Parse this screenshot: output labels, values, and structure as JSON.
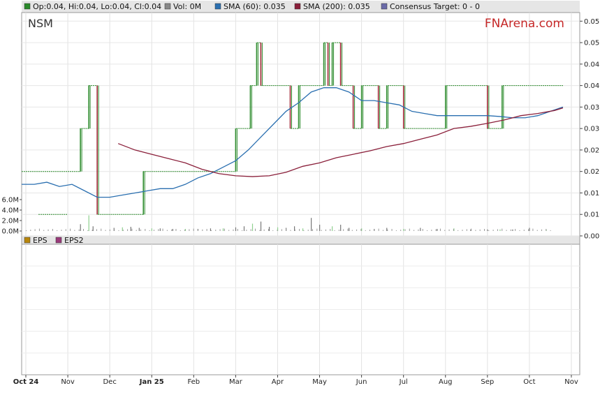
{
  "chart_data": [
    {
      "type": "line",
      "panel": "price",
      "ticker": "NSM",
      "brand": "FNArena.com",
      "legend": [
        {
          "label": "Op:0.04, Hi:0.04, Lo:0.04, Cl:0.04",
          "color": "#2a8a2a"
        },
        {
          "label": "Vol: 0M",
          "color": "#888888"
        },
        {
          "label": "SMA (60): 0.035",
          "color": "#2a6fb0"
        },
        {
          "label": "SMA (200): 0.035",
          "color": "#8a1f3a"
        },
        {
          "label": "Consensus Target: 0 - 0",
          "color": "#6a6aa8"
        }
      ],
      "x_tick_labels": [
        "Oct 24",
        "Nov",
        "Dec",
        "Jan 25",
        "Feb",
        "Mar",
        "Apr",
        "May",
        "Jun",
        "Jul",
        "Aug",
        "Sep",
        "Oct",
        "Nov"
      ],
      "y_tick_labels": [
        "0.055",
        "0.050",
        "0.045",
        "0.040",
        "0.035",
        "0.030",
        "0.025",
        "0.020",
        "0.015",
        "0.010",
        "0.005"
      ],
      "ylim": [
        0.005,
        0.057
      ],
      "volume_tick_labels": [
        "6.0M",
        "4.0M",
        "2.0M",
        "0.0M"
      ],
      "volume_ylim": [
        0,
        8
      ],
      "x_domain": [
        -0.1,
        13.2
      ],
      "close_series": {
        "name": "Close",
        "color": "#2a8a2a",
        "x": [
          -0.1,
          0.2,
          0.6,
          0.7,
          1.0,
          1.1,
          1.15,
          1.2,
          1.3,
          1.5,
          1.7,
          2.0,
          2.3,
          2.8,
          3.2,
          3.6,
          4.2,
          4.6,
          5.0,
          5.2,
          5.35,
          5.5,
          5.6,
          5.65,
          5.75,
          5.9,
          6.1,
          6.3,
          6.5,
          6.8,
          7.0,
          7.1,
          7.2,
          7.3,
          7.5,
          7.7,
          7.8,
          8.0,
          8.2,
          8.4,
          8.6,
          9.0,
          9.3,
          9.6,
          10.0,
          10.4,
          11.0,
          11.3,
          11.35,
          11.4,
          11.6,
          12.0,
          12.6
        ],
        "y": [
          0.02,
          0.02,
          0.02,
          0.02,
          0.02,
          0.02,
          0.02,
          0.02,
          0.03,
          0.04,
          0.01,
          0.01,
          0.01,
          0.02,
          0.02,
          0.02,
          0.02,
          0.02,
          0.03,
          0.03,
          0.04,
          0.05,
          0.04,
          0.04,
          0.04,
          0.04,
          0.04,
          0.03,
          0.04,
          0.04,
          0.04,
          0.05,
          0.04,
          0.05,
          0.04,
          0.04,
          0.03,
          0.04,
          0.04,
          0.03,
          0.04,
          0.03,
          0.03,
          0.03,
          0.04,
          0.04,
          0.03,
          0.03,
          0.04,
          0.04,
          0.04,
          0.04,
          0.04
        ],
        "dot_segment_low": {
          "x": [
            0.3,
            1.0
          ],
          "y": 0.01
        }
      },
      "series": [
        {
          "name": "SMA (60)",
          "color": "#2a6fb0",
          "x": [
            -0.1,
            0.2,
            0.5,
            0.8,
            1.1,
            1.4,
            1.7,
            2.0,
            2.3,
            2.6,
            2.9,
            3.2,
            3.5,
            3.8,
            4.1,
            4.4,
            4.7,
            5.0,
            5.3,
            5.6,
            5.9,
            6.2,
            6.5,
            6.8,
            7.1,
            7.4,
            7.7,
            8.0,
            8.3,
            8.6,
            8.9,
            9.2,
            9.5,
            9.8,
            10.1,
            10.4,
            10.7,
            11.0,
            11.3,
            11.6,
            11.9,
            12.2,
            12.5,
            12.8
          ],
          "y": [
            0.017,
            0.017,
            0.0175,
            0.0165,
            0.017,
            0.0155,
            0.014,
            0.014,
            0.0145,
            0.015,
            0.0155,
            0.016,
            0.016,
            0.017,
            0.0185,
            0.0195,
            0.021,
            0.0225,
            0.025,
            0.028,
            0.031,
            0.034,
            0.036,
            0.0385,
            0.0395,
            0.0395,
            0.0385,
            0.0365,
            0.0365,
            0.036,
            0.0355,
            0.034,
            0.0335,
            0.033,
            0.033,
            0.033,
            0.033,
            0.033,
            0.0328,
            0.0325,
            0.0325,
            0.033,
            0.034,
            0.035
          ]
        },
        {
          "name": "SMA (200)",
          "color": "#8a1f3a",
          "x": [
            2.2,
            2.6,
            3.0,
            3.4,
            3.8,
            4.2,
            4.6,
            5.0,
            5.4,
            5.8,
            6.2,
            6.6,
            7.0,
            7.4,
            7.8,
            8.2,
            8.6,
            9.0,
            9.4,
            9.8,
            10.2,
            10.6,
            11.0,
            11.4,
            11.8,
            12.2,
            12.6,
            12.8
          ],
          "y": [
            0.0265,
            0.025,
            0.024,
            0.023,
            0.022,
            0.0205,
            0.0195,
            0.019,
            0.0188,
            0.019,
            0.0198,
            0.0212,
            0.022,
            0.0232,
            0.024,
            0.0248,
            0.0258,
            0.0265,
            0.0275,
            0.0285,
            0.03,
            0.0305,
            0.0312,
            0.032,
            0.033,
            0.0335,
            0.0342,
            0.0348
          ]
        }
      ],
      "volume": {
        "x": [
          1.3,
          1.5,
          1.6,
          2.1,
          2.3,
          2.5,
          2.7,
          3.0,
          3.2,
          3.5,
          3.8,
          4.1,
          4.4,
          4.7,
          5.0,
          5.2,
          5.4,
          5.6,
          5.8,
          6.0,
          6.2,
          6.4,
          6.6,
          6.8,
          7.0,
          7.3,
          7.5,
          7.7,
          8.0,
          8.3,
          8.6,
          9.0,
          9.4,
          9.8,
          10.2,
          10.6,
          11.0,
          11.3,
          11.6,
          12.0,
          12.4
        ],
        "values": [
          1.3,
          3.0,
          0.9,
          0.6,
          0.7,
          0.8,
          0.6,
          0.5,
          0.5,
          0.4,
          0.4,
          0.4,
          0.5,
          0.5,
          0.7,
          0.9,
          1.4,
          1.8,
          0.8,
          0.7,
          0.6,
          0.9,
          0.5,
          2.5,
          1.2,
          0.9,
          1.2,
          0.6,
          0.5,
          0.4,
          0.6,
          0.4,
          0.6,
          0.4,
          0.5,
          0.3,
          0.3,
          0.3,
          0.3,
          0.6,
          0.3
        ]
      }
    },
    {
      "type": "bar",
      "panel": "eps",
      "legend": [
        {
          "label": "EPS",
          "color": "#b8860b"
        },
        {
          "label": "EPS2",
          "color": "#9a3a7a"
        }
      ]
    }
  ]
}
